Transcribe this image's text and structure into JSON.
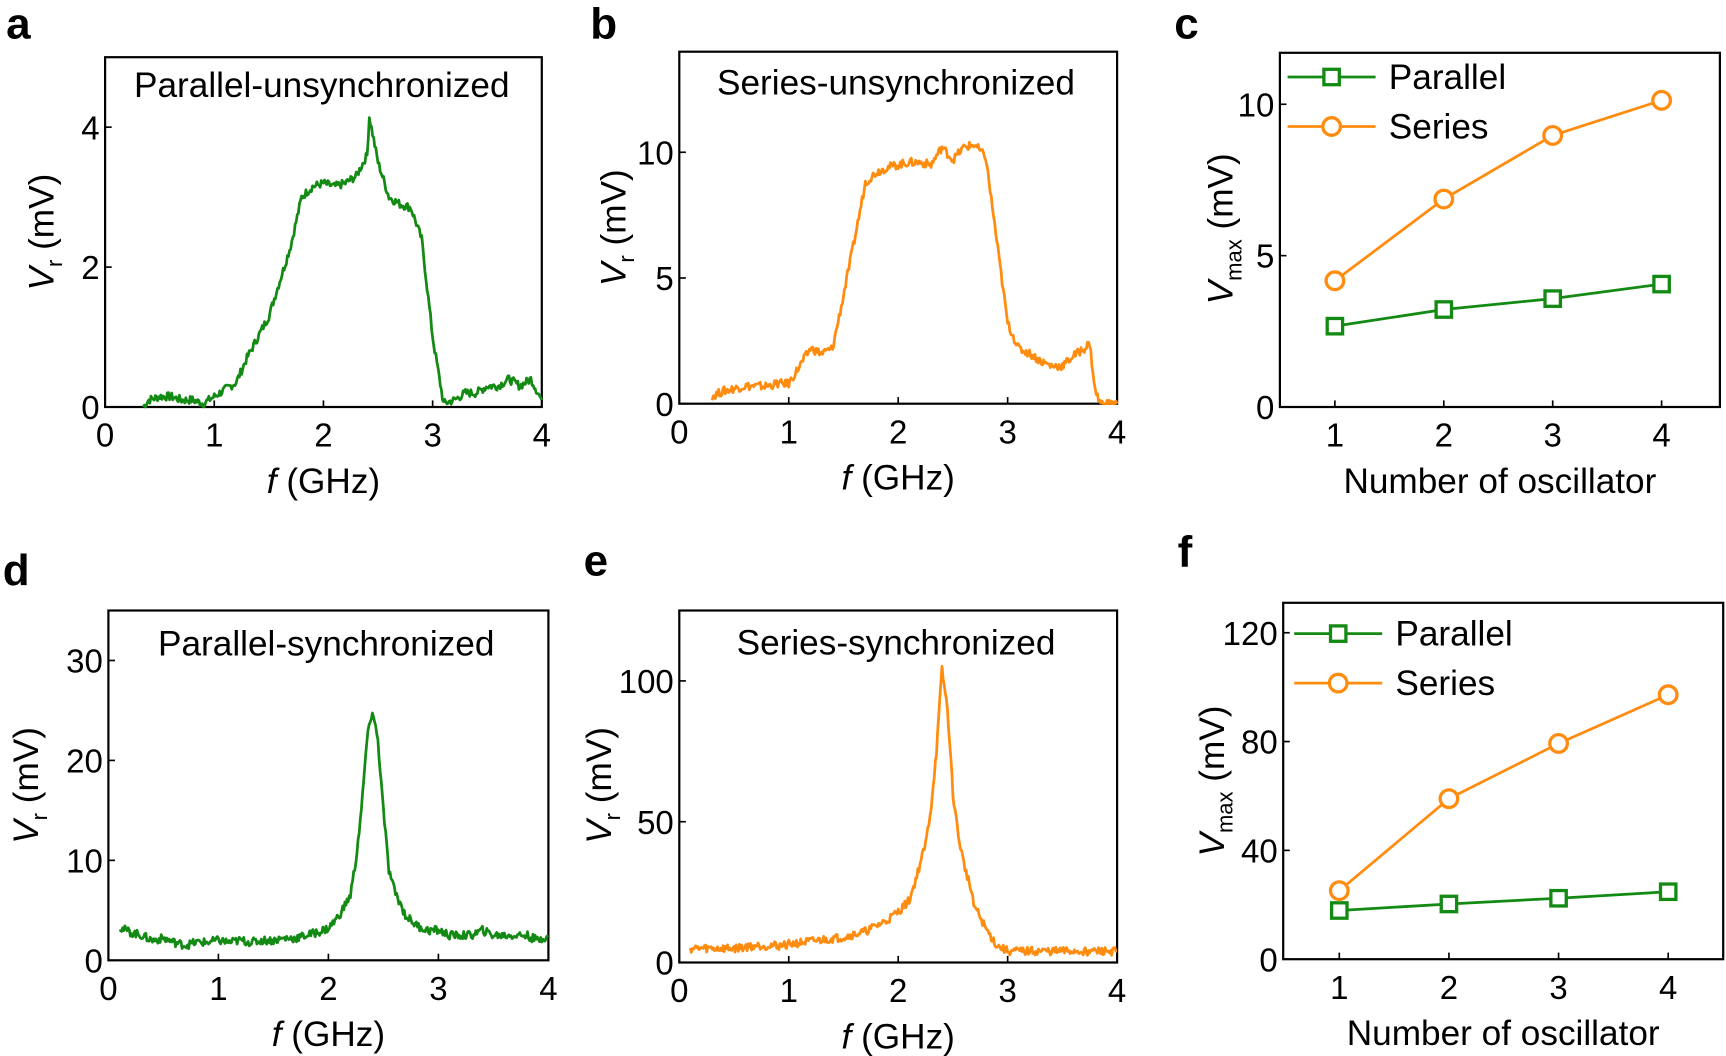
{
  "colors": {
    "green": "#138a13",
    "orange": "#ff8c0f",
    "axis": "#000000"
  },
  "chart_data": [
    {
      "panel": "a",
      "type": "line",
      "title": "Parallel-unsynchronized",
      "xlabel": {
        "italic": "f",
        "rest": " (GHz)"
      },
      "ylabel": {
        "italic": "V",
        "sub": "r",
        "rest": " (mV)"
      },
      "xlim": [
        0,
        4
      ],
      "ylim": [
        0,
        5
      ],
      "xticks": [
        0,
        1,
        2,
        3,
        4
      ],
      "yticks": [
        0,
        2,
        4
      ],
      "color": "green",
      "x": [
        0.35,
        0.4,
        0.5,
        0.6,
        0.7,
        0.8,
        0.9,
        1.0,
        1.1,
        1.2,
        1.3,
        1.4,
        1.5,
        1.6,
        1.7,
        1.8,
        1.9,
        2.0,
        2.1,
        2.2,
        2.3,
        2.4,
        2.42,
        2.5,
        2.6,
        2.7,
        2.8,
        2.9,
        3.0,
        3.1,
        3.2,
        3.3,
        3.4,
        3.5,
        3.6,
        3.7,
        3.8,
        3.9,
        4.0
      ],
      "y": [
        0,
        0.1,
        0.15,
        0.15,
        0.1,
        0.1,
        0.05,
        0.15,
        0.25,
        0.35,
        0.7,
        1.0,
        1.3,
        1.8,
        2.3,
        3.0,
        3.15,
        3.2,
        3.15,
        3.2,
        3.3,
        3.6,
        4.15,
        3.5,
        3.0,
        2.9,
        2.85,
        2.4,
        1.0,
        0.05,
        0.1,
        0.2,
        0.2,
        0.3,
        0.3,
        0.4,
        0.3,
        0.4,
        0.1
      ]
    },
    {
      "panel": "b",
      "type": "line",
      "title": "Series-unsynchronized",
      "xlabel": {
        "italic": "f",
        "rest": " (GHz)"
      },
      "ylabel": {
        "italic": "V",
        "sub": "r",
        "rest": " (mV)"
      },
      "xlim": [
        0,
        4
      ],
      "ylim": [
        0,
        14
      ],
      "xticks": [
        0,
        1,
        2,
        3,
        4
      ],
      "yticks": [
        0,
        5,
        10
      ],
      "color": "orange",
      "x": [
        0.3,
        0.4,
        0.5,
        0.6,
        0.7,
        0.8,
        0.9,
        1.0,
        1.1,
        1.2,
        1.3,
        1.4,
        1.5,
        1.6,
        1.7,
        1.8,
        1.9,
        2.0,
        2.1,
        2.2,
        2.3,
        2.4,
        2.5,
        2.6,
        2.7,
        2.8,
        2.9,
        3.0,
        3.1,
        3.2,
        3.3,
        3.4,
        3.5,
        3.6,
        3.7,
        3.75,
        3.8,
        3.85,
        4.0
      ],
      "y": [
        0.3,
        0.5,
        0.6,
        0.7,
        0.7,
        0.7,
        0.8,
        0.8,
        1.5,
        2.2,
        2.0,
        2.2,
        4.3,
        6.5,
        8.8,
        9.2,
        9.4,
        9.5,
        9.6,
        9.6,
        9.5,
        10.2,
        9.7,
        10.2,
        10.3,
        9.8,
        6.5,
        3.2,
        2.2,
        2.0,
        1.7,
        1.5,
        1.5,
        1.9,
        2.2,
        2.4,
        0.5,
        0,
        0
      ]
    },
    {
      "panel": "c",
      "type": "line",
      "title": "",
      "xlabel": {
        "italic": "",
        "rest": "Number of oscillator"
      },
      "ylabel": {
        "italic": "V",
        "sub": "max",
        "rest": " (mV)"
      },
      "xlim": [
        0.5,
        4.5
      ],
      "ylim": [
        0,
        11.7
      ],
      "xticks": [
        1,
        2,
        3,
        4
      ],
      "yticks": [
        0,
        5,
        10
      ],
      "legend": "top-left",
      "categories": [
        1,
        2,
        3,
        4
      ],
      "series": [
        {
          "name": "Parallel",
          "color": "green",
          "marker": "square",
          "values": [
            2.67,
            3.22,
            3.58,
            4.06
          ]
        },
        {
          "name": "Series",
          "color": "orange",
          "marker": "circle",
          "values": [
            4.17,
            6.87,
            8.97,
            10.13
          ]
        }
      ]
    },
    {
      "panel": "d",
      "type": "line",
      "title": "Parallel-synchronized",
      "xlabel": {
        "italic": "f",
        "rest": " (GHz)"
      },
      "ylabel": {
        "italic": "V",
        "sub": "r",
        "rest": " (mV)"
      },
      "xlim": [
        0,
        4
      ],
      "ylim": [
        0,
        35
      ],
      "xticks": [
        0,
        1,
        2,
        3,
        4
      ],
      "yticks": [
        0,
        10,
        20,
        30
      ],
      "color": "green",
      "x": [
        0.1,
        0.2,
        0.3,
        0.4,
        0.5,
        0.6,
        0.7,
        0.8,
        0.9,
        1.0,
        1.1,
        1.2,
        1.3,
        1.4,
        1.5,
        1.6,
        1.7,
        1.8,
        1.9,
        2.0,
        2.1,
        2.2,
        2.25,
        2.3,
        2.35,
        2.4,
        2.45,
        2.5,
        2.55,
        2.6,
        2.7,
        2.8,
        2.9,
        3.0,
        3.1,
        3.2,
        3.3,
        3.4,
        3.5,
        3.6,
        3.7,
        3.8,
        3.9,
        4.0
      ],
      "y": [
        3.3,
        2.8,
        2.5,
        2.0,
        2.2,
        1.8,
        1.5,
        1.8,
        1.8,
        2.0,
        1.8,
        2.0,
        1.8,
        2.0,
        2.0,
        2.2,
        2.2,
        2.5,
        2.8,
        3.2,
        4.5,
        6.5,
        10,
        15,
        22,
        25,
        22,
        15,
        9,
        7,
        4.5,
        3.5,
        3.0,
        3.0,
        2.5,
        2.5,
        2.5,
        3.0,
        2.5,
        2.5,
        2.5,
        2.5,
        2.0,
        2.5
      ]
    },
    {
      "panel": "e",
      "type": "line",
      "title": "Series-synchronized",
      "xlabel": {
        "italic": "f",
        "rest": " (GHz)"
      },
      "ylabel": {
        "italic": "V",
        "sub": "r",
        "rest": " (mV)"
      },
      "xlim": [
        0,
        4
      ],
      "ylim": [
        0,
        125
      ],
      "xticks": [
        0,
        1,
        2,
        3,
        4
      ],
      "yticks": [
        0,
        50,
        100
      ],
      "color": "orange",
      "x": [
        0.1,
        0.3,
        0.5,
        0.7,
        0.9,
        1.1,
        1.3,
        1.5,
        1.7,
        1.8,
        1.9,
        2.0,
        2.1,
        2.15,
        2.2,
        2.25,
        2.3,
        2.35,
        2.4,
        2.45,
        2.5,
        2.55,
        2.6,
        2.65,
        2.7,
        2.8,
        2.9,
        3.0,
        3.2,
        3.5,
        3.8,
        4.0
      ],
      "y": [
        5,
        5,
        5,
        6,
        6,
        7,
        8,
        9,
        11,
        13,
        15,
        18,
        22,
        28,
        35,
        42,
        55,
        75,
        104,
        90,
        60,
        45,
        35,
        28,
        20,
        12,
        6,
        4,
        4,
        4,
        4,
        4
      ]
    },
    {
      "panel": "f",
      "type": "line",
      "title": "",
      "xlabel": {
        "italic": "",
        "rest": "Number of oscillator"
      },
      "ylabel": {
        "italic": "V",
        "sub": "max",
        "rest": " (mV)"
      },
      "xlim": [
        0.5,
        4.5
      ],
      "ylim": [
        0,
        131
      ],
      "xticks": [
        1,
        2,
        3,
        4
      ],
      "yticks": [
        0,
        40,
        80,
        120
      ],
      "legend": "top-left",
      "categories": [
        1,
        2,
        3,
        4
      ],
      "series": [
        {
          "name": "Parallel",
          "color": "green",
          "marker": "square",
          "values": [
            17.9,
            20.3,
            22.4,
            24.8
          ]
        },
        {
          "name": "Series",
          "color": "orange",
          "marker": "circle",
          "values": [
            25.2,
            59.0,
            79.3,
            97.2
          ]
        }
      ]
    }
  ]
}
